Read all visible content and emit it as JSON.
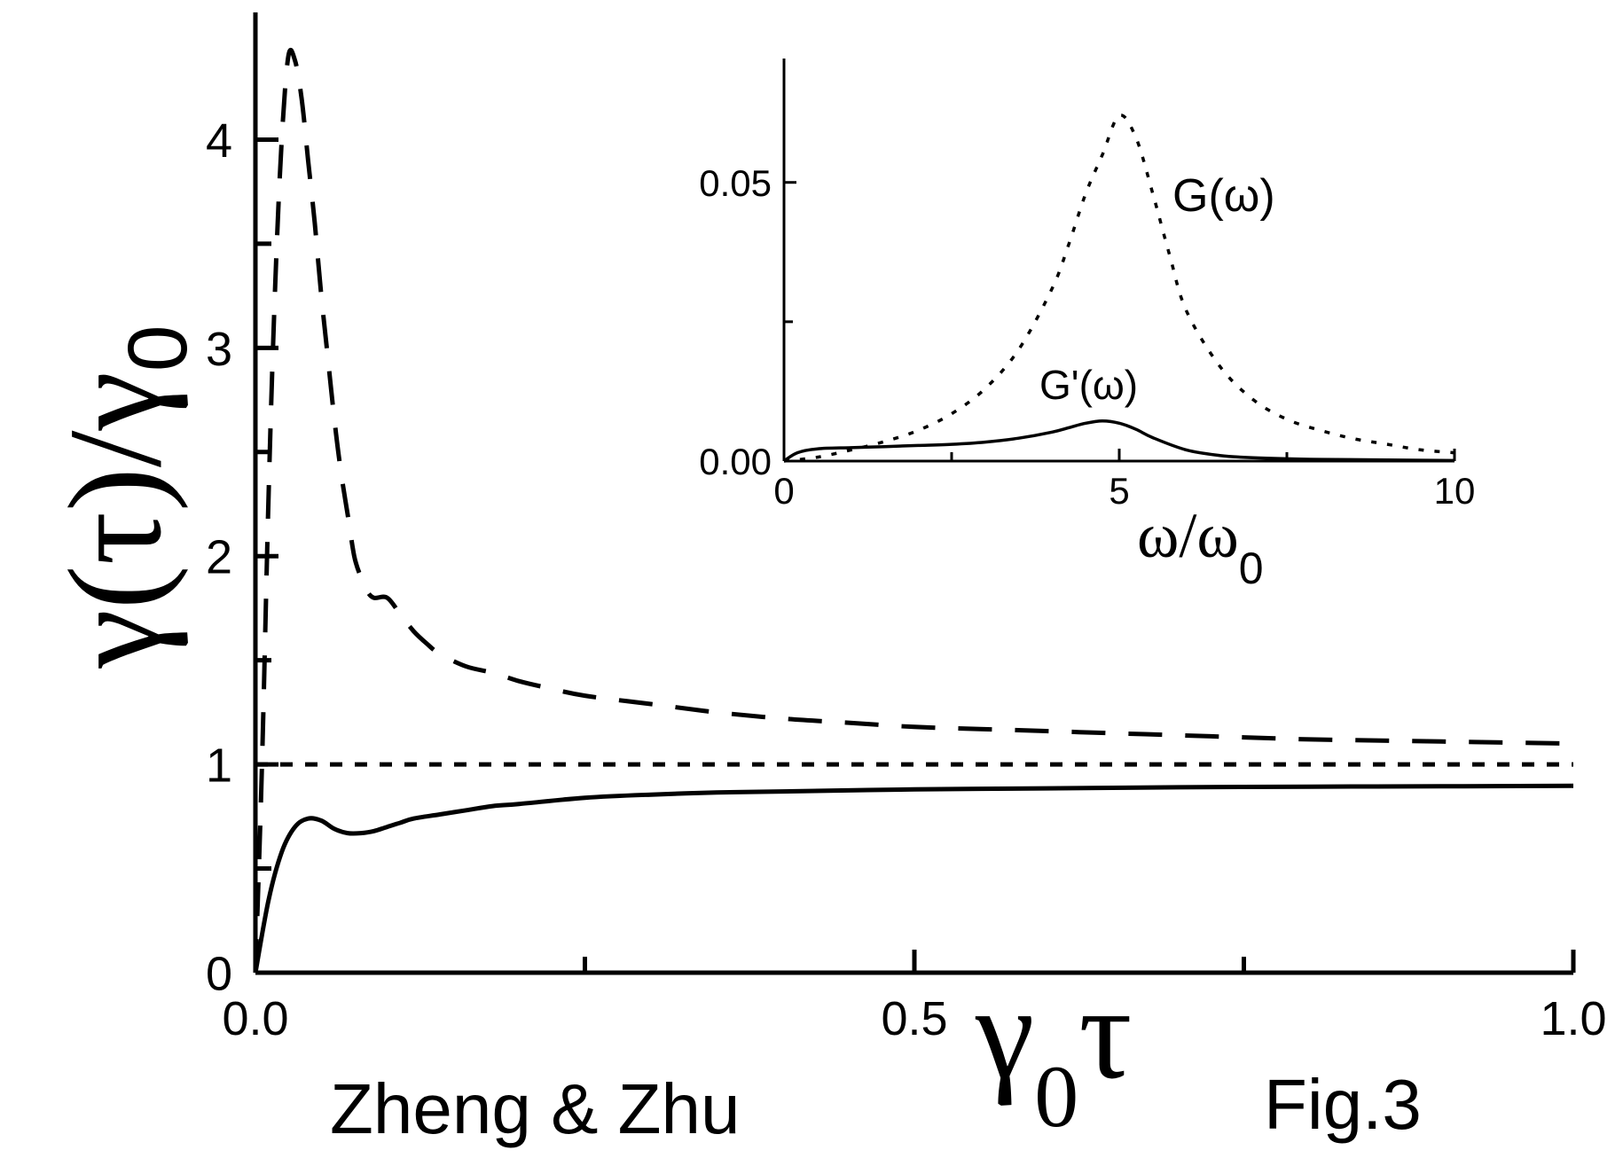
{
  "chart_data": [
    {
      "type": "line",
      "role": "main",
      "xlabel_symbol": "γ",
      "xlabel_sub": "0",
      "xlabel_var": "τ",
      "ylabel_open": "γ(τ)/γ",
      "ylabel_sub": "0",
      "xlim": [
        0,
        1.0
      ],
      "ylim": [
        0,
        4.5
      ],
      "xticks": [
        0.0,
        0.25,
        0.5,
        0.75,
        1.0
      ],
      "xtick_labels": [
        "0.0",
        "",
        "0.5",
        "",
        "1.0"
      ],
      "yticks": [
        0,
        0.5,
        1,
        1.5,
        2,
        2.5,
        3,
        3.5,
        4
      ],
      "ytick_labels": [
        "0",
        "",
        "1",
        "",
        "2",
        "",
        "3",
        "",
        "4"
      ],
      "grid": false,
      "series": [
        {
          "style": "dashed",
          "x": [
            0.0,
            0.005,
            0.01,
            0.015,
            0.02,
            0.025,
            0.03,
            0.035,
            0.04,
            0.045,
            0.05,
            0.055,
            0.06,
            0.065,
            0.07,
            0.075,
            0.08,
            0.085,
            0.09,
            0.1,
            0.11,
            0.12,
            0.13,
            0.14,
            0.16,
            0.18,
            0.2,
            0.22,
            0.25,
            0.3,
            0.35,
            0.4,
            0.45,
            0.5,
            0.55,
            0.6,
            0.65,
            0.7,
            0.75,
            0.8,
            0.85,
            0.9,
            0.95,
            1.0
          ],
          "y": [
            0.0,
            1.0,
            2.3,
            3.3,
            4.0,
            4.4,
            4.38,
            4.2,
            3.9,
            3.6,
            3.25,
            2.95,
            2.65,
            2.4,
            2.2,
            2.0,
            1.9,
            1.83,
            1.8,
            1.8,
            1.72,
            1.64,
            1.58,
            1.53,
            1.47,
            1.44,
            1.4,
            1.37,
            1.33,
            1.29,
            1.25,
            1.22,
            1.2,
            1.18,
            1.17,
            1.16,
            1.15,
            1.14,
            1.13,
            1.12,
            1.115,
            1.11,
            1.105,
            1.1
          ]
        },
        {
          "style": "dotted",
          "x": [
            0.0,
            1.0
          ],
          "y": [
            1.0,
            1.0
          ]
        },
        {
          "style": "solid",
          "x": [
            0.0,
            0.01,
            0.02,
            0.03,
            0.04,
            0.05,
            0.06,
            0.07,
            0.08,
            0.09,
            0.1,
            0.11,
            0.12,
            0.14,
            0.16,
            0.18,
            0.2,
            0.25,
            0.3,
            0.35,
            0.4,
            0.5,
            0.6,
            0.7,
            0.8,
            0.9,
            1.0
          ],
          "y": [
            0.0,
            0.35,
            0.58,
            0.7,
            0.74,
            0.73,
            0.69,
            0.67,
            0.67,
            0.68,
            0.7,
            0.72,
            0.74,
            0.76,
            0.78,
            0.8,
            0.81,
            0.84,
            0.855,
            0.865,
            0.87,
            0.88,
            0.885,
            0.89,
            0.893,
            0.895,
            0.897
          ]
        }
      ]
    },
    {
      "type": "line",
      "role": "inset",
      "xlabel_open": "ω/ω",
      "xlabel_sub": "0",
      "xlim": [
        0,
        10
      ],
      "ylim": [
        0,
        0.07
      ],
      "xticks": [
        0,
        2.5,
        5,
        7.5,
        10
      ],
      "xtick_labels": [
        "0",
        "",
        "5",
        "",
        "10"
      ],
      "yticks": [
        0,
        0.025,
        0.05
      ],
      "ytick_labels": [
        "0.00",
        "",
        "0.05"
      ],
      "grid": false,
      "series": [
        {
          "name": "G(ω)",
          "style": "dotted",
          "x": [
            0.0,
            0.5,
            1.0,
            1.5,
            2.0,
            2.5,
            3.0,
            3.5,
            4.0,
            4.25,
            4.5,
            4.75,
            5.0,
            5.25,
            5.5,
            5.75,
            6.0,
            6.5,
            7.0,
            7.5,
            8.0,
            8.5,
            9.0,
            9.5,
            10.0
          ],
          "y": [
            0.0,
            0.0007,
            0.002,
            0.0035,
            0.0055,
            0.0085,
            0.013,
            0.02,
            0.031,
            0.039,
            0.048,
            0.055,
            0.062,
            0.058,
            0.048,
            0.037,
            0.027,
            0.017,
            0.011,
            0.0075,
            0.0055,
            0.004,
            0.003,
            0.002,
            0.0015
          ]
        },
        {
          "name": "G'(ω)",
          "style": "solid",
          "x": [
            0.0,
            0.2,
            0.5,
            1.0,
            1.5,
            2.0,
            2.5,
            3.0,
            3.5,
            4.0,
            4.25,
            4.5,
            4.75,
            5.0,
            5.25,
            5.5,
            6.0,
            6.5,
            7.0,
            8.0,
            9.0,
            10.0
          ],
          "y": [
            0.0,
            0.0015,
            0.0022,
            0.0024,
            0.0026,
            0.0028,
            0.003,
            0.0034,
            0.0041,
            0.0052,
            0.006,
            0.0068,
            0.0072,
            0.0068,
            0.0057,
            0.0042,
            0.002,
            0.001,
            0.0006,
            0.0003,
            0.0002,
            0.0001
          ]
        }
      ],
      "annotations": [
        "G(ω)",
        "G'(ω)"
      ]
    }
  ],
  "credits": {
    "authors": "Zheng & Zhu",
    "figure_label": "Fig.3"
  }
}
